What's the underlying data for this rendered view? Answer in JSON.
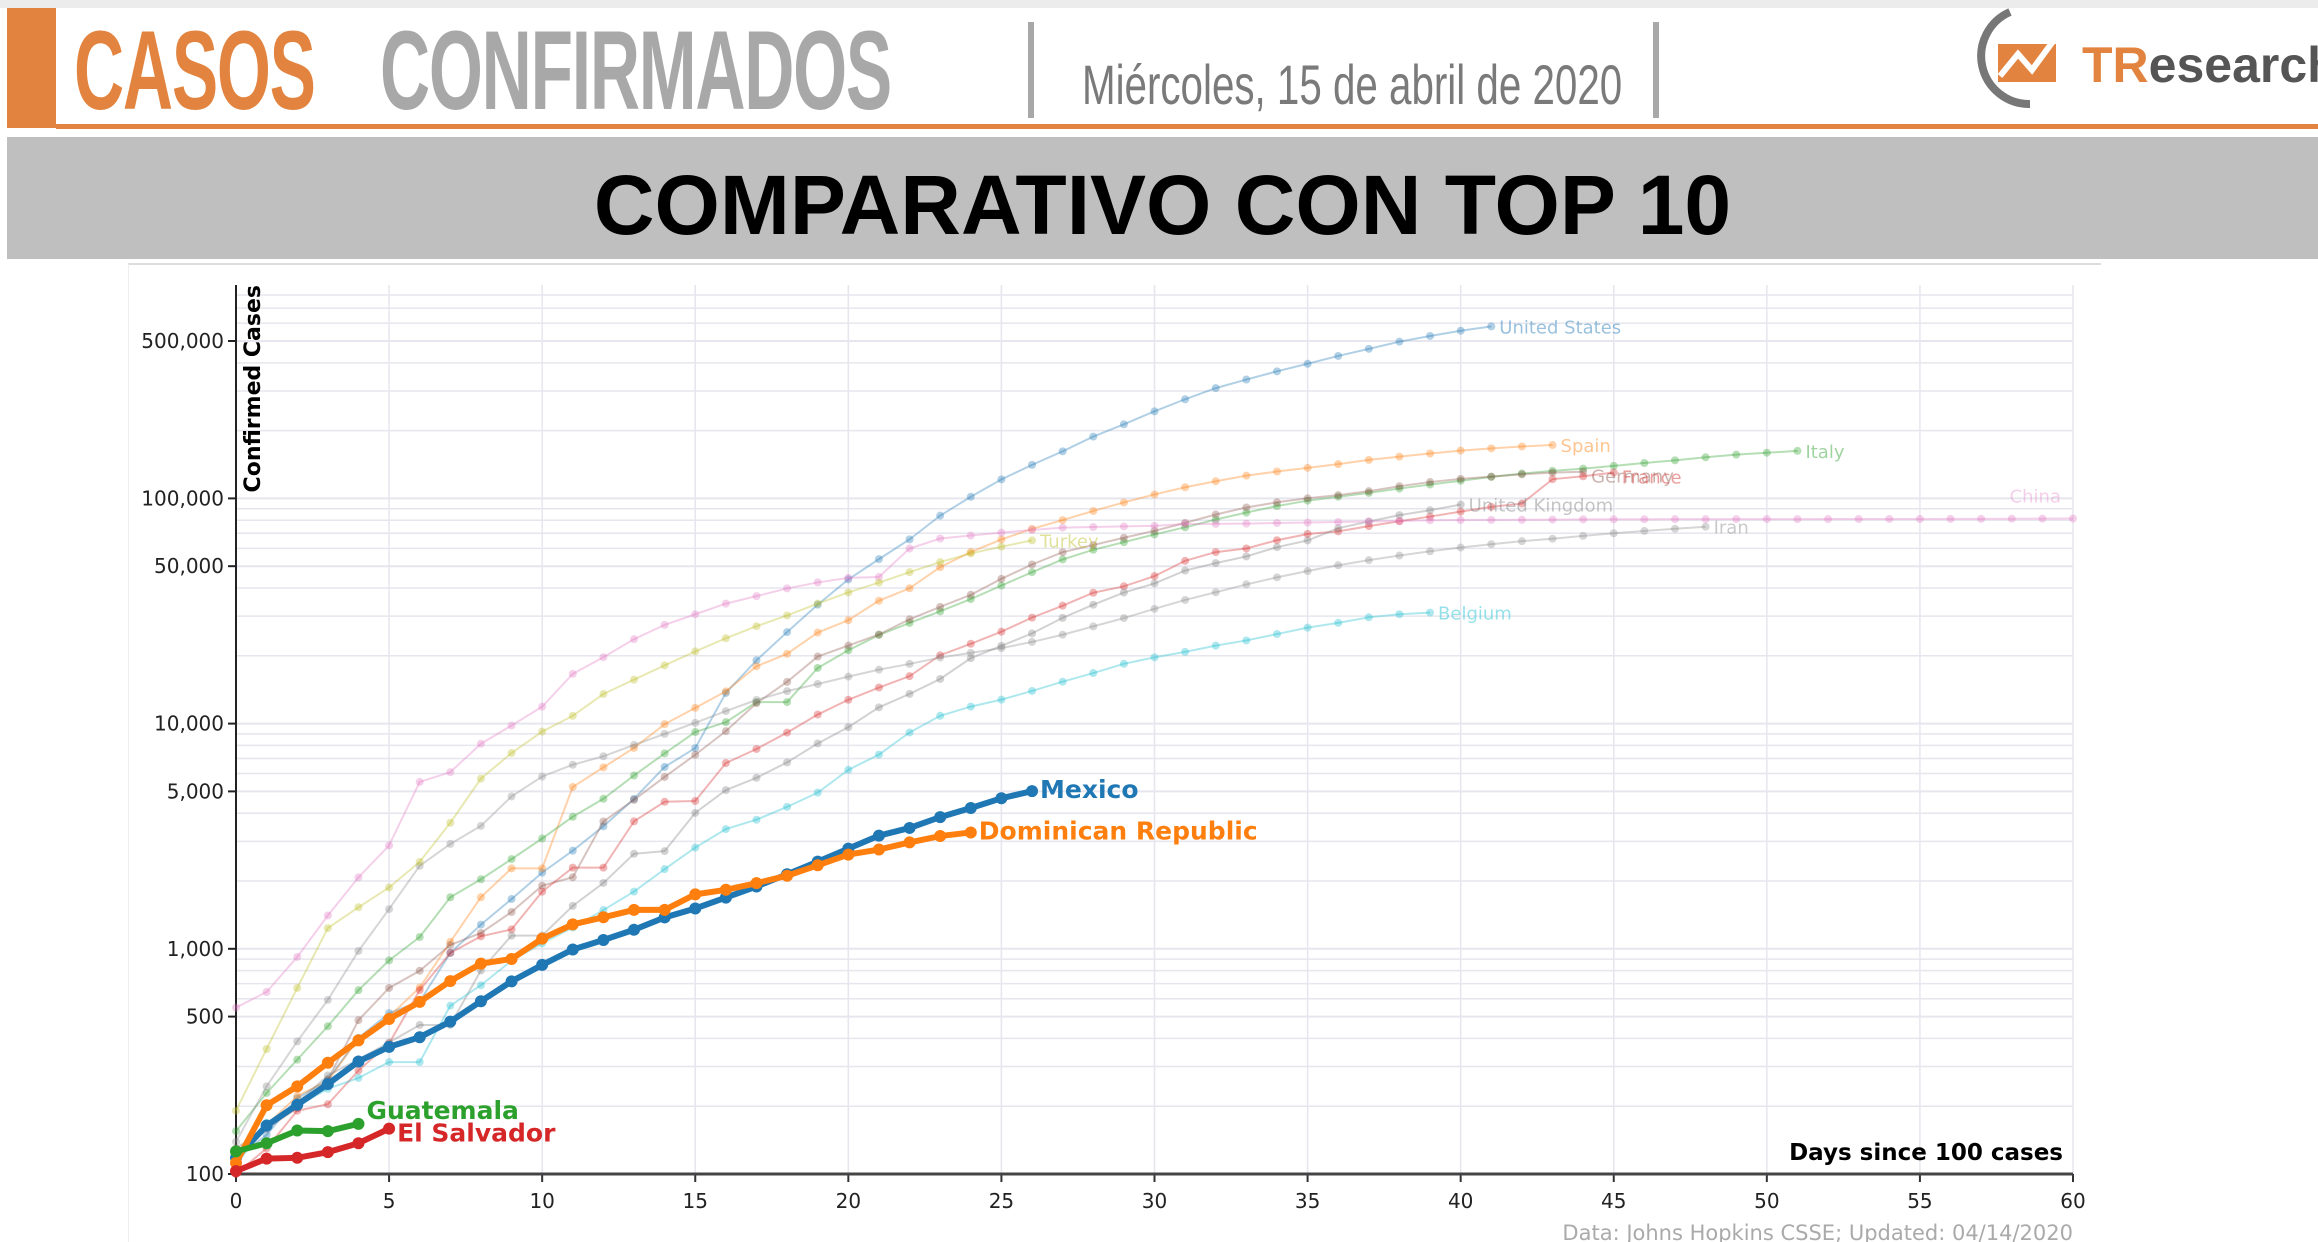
{
  "header": {
    "title_part1": "CASOS",
    "title_part2": "CONFIRMADOS",
    "date": "Miércoles, 15 de abril de 2020",
    "logo_text": "TResearch"
  },
  "banner": {
    "title": "COMPARATIVO CON TOP 10"
  },
  "colors": {
    "accent": "#e2843f",
    "title_gray": "#a8a8a8",
    "banner": "#bfbfbf"
  },
  "chart_data": {
    "type": "line",
    "xlabel": "Days since 100 cases",
    "ylabel": "Confirmed Cases",
    "yscale": "log",
    "xlim": [
      0,
      60
    ],
    "ylim": [
      100,
      800000
    ],
    "x_ticks": [
      "0",
      "5",
      "10",
      "15",
      "20",
      "25",
      "30",
      "35",
      "40",
      "45",
      "50",
      "55",
      "60"
    ],
    "y_ticks": [
      {
        "v": 100,
        "label": "100"
      },
      {
        "v": 500,
        "label": "500"
      },
      {
        "v": 1000,
        "label": "1,000"
      },
      {
        "v": 5000,
        "label": "5,000"
      },
      {
        "v": 10000,
        "label": "10,000"
      },
      {
        "v": 50000,
        "label": "50,000"
      },
      {
        "v": 100000,
        "label": "100,000"
      },
      {
        "v": 500000,
        "label": "500,000"
      }
    ],
    "grid": true,
    "source": "Data: Johns Hopkins CSSE; Updated: 04/14/2020",
    "series": [
      {
        "name": "United States",
        "color": "#1f77b4",
        "highlight": false,
        "values": [
          118,
          149,
          217,
          262,
          402,
          518,
          583,
          959,
          1281,
          1663,
          2179,
          2727,
          3499,
          4632,
          6421,
          7786,
          13680,
          19101,
          25493,
          33746,
          43667,
          53740,
          65778,
          83836,
          101657,
          121478,
          140886,
          161807,
          188172,
          213372,
          243616,
          275586,
          308850,
          337072,
          366667,
          396223,
          429052,
          461437,
          496535,
          526396,
          555313,
          580619
        ]
      },
      {
        "name": "Spain",
        "color": "#ff7f0e",
        "highlight": false,
        "values": [
          120,
          165,
          222,
          259,
          400,
          500,
          673,
          1073,
          1695,
          2277,
          2277,
          5232,
          6391,
          7798,
          9942,
          11748,
          13910,
          17963,
          20410,
          25374,
          28768,
          35136,
          39885,
          49515,
          57786,
          65719,
          73235,
          80110,
          87956,
          95923,
          104118,
          112065,
          119199,
          126168,
          131646,
          136675,
          141942,
          148220,
          153222,
          158273,
          163027,
          166831,
          170099,
          172541
        ]
      },
      {
        "name": "Italy",
        "color": "#2ca02c",
        "highlight": false,
        "values": [
          155,
          229,
          322,
          453,
          655,
          888,
          1128,
          1694,
          2036,
          2502,
          3089,
          3858,
          4636,
          5883,
          7375,
          9172,
          10149,
          12462,
          12462,
          17660,
          21157,
          24747,
          27980,
          31506,
          35713,
          41035,
          47021,
          53578,
          59138,
          63927,
          69176,
          74386,
          80589,
          86498,
          92472,
          97689,
          101739,
          105792,
          110574,
          115242,
          119827,
          124632,
          128948,
          132547,
          135586,
          139422,
          143626,
          147577,
          152271,
          156363,
          159516,
          162488
        ]
      },
      {
        "name": "Germany",
        "color": "#8c564b",
        "highlight": false,
        "values": [
          130,
          159,
          196,
          262,
          482,
          670,
          799,
          1040,
          1176,
          1457,
          1908,
          2078,
          3675,
          4585,
          5795,
          7272,
          9257,
          12327,
          15320,
          19848,
          22213,
          24873,
          29056,
          32986,
          37323,
          43938,
          50871,
          57695,
          62095,
          66885,
          71808,
          77872,
          84794,
          91159,
          96092,
          100123,
          103374,
          107663,
          113296,
          118181,
          122171,
          124908,
          127854,
          130072,
          131359
        ]
      },
      {
        "name": "France",
        "color": "#d62728",
        "highlight": false,
        "values": [
          100,
          130,
          191,
          204,
          288,
          380,
          656,
          959,
          1136,
          1219,
          1794,
          2293,
          2293,
          3681,
          4496,
          4532,
          6683,
          7715,
          9124,
          10970,
          12758,
          14463,
          16243,
          20123,
          22622,
          25600,
          29551,
          33402,
          38105,
          40708,
          45170,
          52827,
          57749,
          59929,
          65202,
          69500,
          71412,
          75343,
          79163,
          83057,
          87366,
          91738,
          94863,
          121712,
          125394,
          130365
        ]
      },
      {
        "name": "United Kingdom",
        "color": "#7f7f7f",
        "highlight": false,
        "values": [
          115,
          164,
          207,
          274,
          322,
          384,
          459,
          459,
          802,
          1144,
          1145,
          1551,
          1960,
          2642,
          2716,
          4014,
          5067,
          5745,
          6726,
          8164,
          9640,
          11812,
          13545,
          15784,
          19522,
          22141,
          25150,
          29474,
          33718,
          38168,
          41903,
          47806,
          51608,
          55242,
          60733,
          65077,
          73758,
          78991,
          84279,
          88621,
          93873
        ]
      },
      {
        "name": "China",
        "color": "#e377c2",
        "highlight": false,
        "values": [
          548,
          643,
          920,
          1406,
          2075,
          2877,
          5509,
          6087,
          8141,
          9802,
          11891,
          16630,
          19716,
          23707,
          27440,
          30587,
          34110,
          36814,
          39829,
          42354,
          44386,
          44759,
          59895,
          66358,
          68413,
          70513,
          72434,
          74211,
          74619,
          75077,
          75550,
          77001,
          77022,
          77241,
          77754,
          78166,
          78600,
          78928,
          79356,
          79932,
          80136,
          80261,
          80386,
          80537,
          80690,
          80770,
          80823,
          80860,
          80887,
          80921,
          80932,
          80945,
          80977,
          81003,
          81033,
          81058,
          81102,
          81156,
          81250,
          81305,
          81435
        ]
      },
      {
        "name": "Iran",
        "color": "#8a8a8a",
        "highlight": false,
        "values": [
          139,
          245,
          388,
          593,
          978,
          1501,
          2336,
          2922,
          3513,
          4747,
          5823,
          6566,
          7161,
          8042,
          9000,
          10075,
          11364,
          12729,
          13938,
          14991,
          16169,
          17361,
          18407,
          19644,
          20610,
          21638,
          23049,
          24811,
          27017,
          29406,
          32332,
          35408,
          38309,
          41495,
          44605,
          47593,
          50468,
          53183,
          55743,
          58226,
          60500,
          62589,
          64586,
          66220,
          68192,
          70029,
          71686,
          73303,
          74877
        ]
      },
      {
        "name": "Turkey",
        "color": "#bcbd22",
        "highlight": false,
        "values": [
          191,
          359,
          670,
          1236,
          1529,
          1872,
          2433,
          3629,
          5698,
          7402,
          9217,
          10827,
          13531,
          15679,
          18135,
          20921,
          23934,
          27069,
          30217,
          34109,
          38226,
          42282,
          47029,
          52167,
          56956,
          61049,
          65111
        ]
      },
      {
        "name": "Belgium",
        "color": "#17becf",
        "highlight": false,
        "values": [
          109,
          169,
          200,
          239,
          267,
          314,
          314,
          559,
          689,
          886,
          1058,
          1243,
          1486,
          1795,
          2257,
          2815,
          3401,
          3743,
          4269,
          4937,
          6235,
          7284,
          9134,
          10836,
          11899,
          12775,
          13964,
          15348,
          16770,
          18431,
          19691,
          20814,
          22194,
          23403,
          24983,
          26667,
          28018,
          29647,
          30589,
          31119
        ]
      },
      {
        "name": "Mexico",
        "color": "#1f77b4",
        "highlight": true,
        "values": [
          118,
          164,
          203,
          251,
          316,
          367,
          405,
          475,
          585,
          717,
          848,
          993,
          1094,
          1215,
          1378,
          1510,
          1688,
          1890,
          2143,
          2439,
          2785,
          3181,
          3441,
          3844,
          4219,
          4661,
          5014
        ]
      },
      {
        "name": "Dominican Republic",
        "color": "#ff7f0e",
        "highlight": true,
        "values": [
          112,
          202,
          245,
          312,
          392,
          488,
          581,
          719,
          859,
          901,
          1109,
          1284,
          1380,
          1488,
          1488,
          1745,
          1828,
          1956,
          2111,
          2349,
          2620,
          2759,
          2967,
          3167,
          3286
        ]
      },
      {
        "name": "Guatemala",
        "color": "#2ca02c",
        "highlight": true,
        "values": [
          126,
          137,
          156,
          155,
          167
        ]
      },
      {
        "name": "El Salvador",
        "color": "#d62728",
        "highlight": true,
        "values": [
          103,
          117,
          118,
          125,
          137,
          159
        ]
      }
    ]
  }
}
